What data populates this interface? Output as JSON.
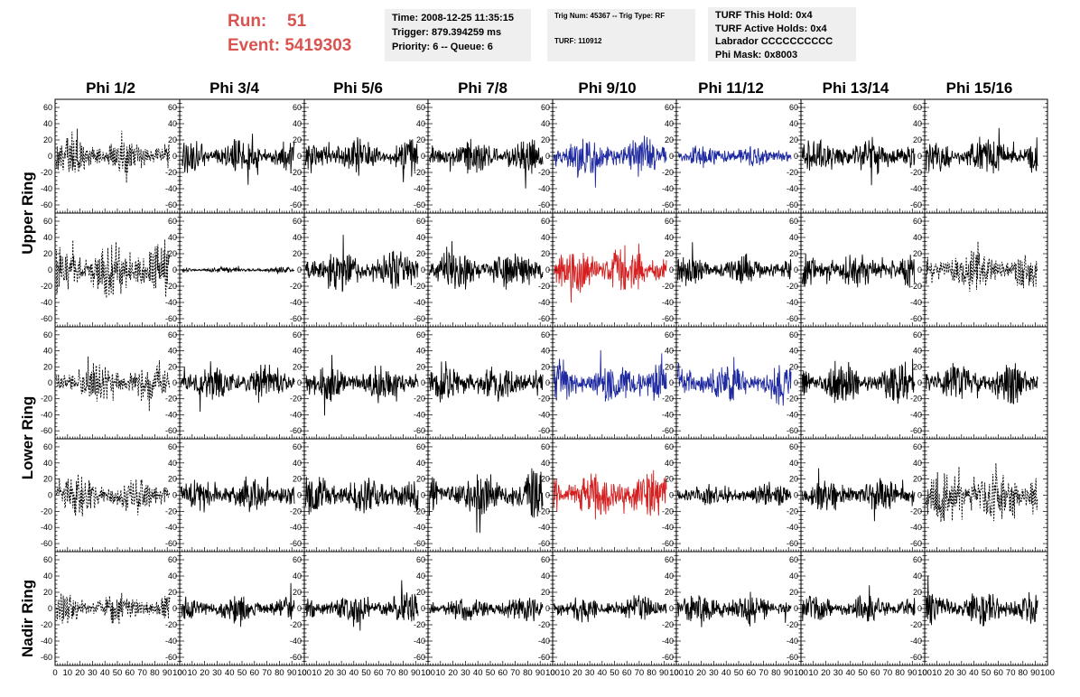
{
  "header": {
    "run_label": "Run:",
    "run_value": "51",
    "event_label": "Event:",
    "event_value": "5419303",
    "time_line": "Time: 2008-12-25 11:35:15",
    "trigger_line": "Trigger: 879.394259 ms",
    "priority_line": "Priority: 6 -- Queue: 6",
    "trig_num_line": "Trig Num: 45367 -- Trig Type: RF",
    "turf_line": "TURF: 110912",
    "turf_this_hold": "TURF This Hold: 0x4",
    "turf_active_holds": "TURF Active Holds: 0x4",
    "labrador": "Labrador CCCCCCCCCC",
    "phi_mask": "Phi Mask: 0x8003"
  },
  "colors": {
    "header_red": "#d9534f",
    "trace_black": "#000000",
    "trace_blue": "#1f2aa0",
    "trace_red": "#d42020",
    "info_bg": "#efefef"
  },
  "chart_data": {
    "type": "line",
    "columns": [
      "Phi 1/2",
      "Phi 3/4",
      "Phi 5/6",
      "Phi 7/8",
      "Phi 9/10",
      "Phi 11/12",
      "Phi 13/14",
      "Phi 15/16"
    ],
    "rows": [
      "Upper Ring",
      "Lower Ring",
      "Nadir Ring"
    ],
    "xlim": [
      0,
      100
    ],
    "x_ticks": [
      0,
      10,
      20,
      30,
      40,
      50,
      60,
      70,
      80,
      90,
      100
    ],
    "ylim": [
      -70,
      70
    ],
    "y_ticks": [
      -60,
      -40,
      -20,
      0,
      20,
      40,
      60
    ],
    "panels": [
      {
        "row": 0,
        "col": 0,
        "color": "black",
        "style": "dashed",
        "amplitude": 20
      },
      {
        "row": 0,
        "col": 1,
        "color": "black",
        "style": "solid",
        "amplitude": 18
      },
      {
        "row": 0,
        "col": 2,
        "color": "black",
        "style": "solid",
        "amplitude": 20
      },
      {
        "row": 0,
        "col": 3,
        "color": "black",
        "style": "solid",
        "amplitude": 18
      },
      {
        "row": 0,
        "col": 4,
        "color": "blue",
        "style": "solid",
        "amplitude": 22
      },
      {
        "row": 0,
        "col": 5,
        "color": "blue",
        "style": "solid",
        "amplitude": 12
      },
      {
        "row": 0,
        "col": 6,
        "color": "black",
        "style": "solid",
        "amplitude": 20
      },
      {
        "row": 0,
        "col": 7,
        "color": "black",
        "style": "solid",
        "amplitude": 20
      },
      {
        "row": 1,
        "col": 0,
        "color": "black",
        "style": "dashed",
        "amplitude": 32
      },
      {
        "row": 1,
        "col": 1,
        "color": "black",
        "style": "solid",
        "amplitude": 3
      },
      {
        "row": 1,
        "col": 2,
        "color": "black",
        "style": "solid",
        "amplitude": 22
      },
      {
        "row": 1,
        "col": 3,
        "color": "black",
        "style": "solid",
        "amplitude": 22
      },
      {
        "row": 1,
        "col": 4,
        "color": "red",
        "style": "solid",
        "amplitude": 26
      },
      {
        "row": 1,
        "col": 5,
        "color": "black",
        "style": "solid",
        "amplitude": 16
      },
      {
        "row": 1,
        "col": 6,
        "color": "black",
        "style": "solid",
        "amplitude": 18
      },
      {
        "row": 1,
        "col": 7,
        "color": "black",
        "style": "dashed",
        "amplitude": 22
      },
      {
        "row": 2,
        "col": 0,
        "color": "black",
        "style": "dashed",
        "amplitude": 22
      },
      {
        "row": 2,
        "col": 1,
        "color": "black",
        "style": "solid",
        "amplitude": 20
      },
      {
        "row": 2,
        "col": 2,
        "color": "black",
        "style": "solid",
        "amplitude": 20
      },
      {
        "row": 2,
        "col": 3,
        "color": "black",
        "style": "solid",
        "amplitude": 22
      },
      {
        "row": 2,
        "col": 4,
        "color": "blue",
        "style": "solid",
        "amplitude": 24
      },
      {
        "row": 2,
        "col": 5,
        "color": "blue",
        "style": "solid",
        "amplitude": 22
      },
      {
        "row": 2,
        "col": 6,
        "color": "black",
        "style": "solid",
        "amplitude": 22
      },
      {
        "row": 2,
        "col": 7,
        "color": "black",
        "style": "solid",
        "amplitude": 22
      },
      {
        "row": 3,
        "col": 0,
        "color": "black",
        "style": "dashed",
        "amplitude": 22
      },
      {
        "row": 3,
        "col": 1,
        "color": "black",
        "style": "solid",
        "amplitude": 18
      },
      {
        "row": 3,
        "col": 2,
        "color": "black",
        "style": "solid",
        "amplitude": 22
      },
      {
        "row": 3,
        "col": 3,
        "color": "black",
        "style": "solid",
        "amplitude": 24
      },
      {
        "row": 3,
        "col": 4,
        "color": "red",
        "style": "solid",
        "amplitude": 26
      },
      {
        "row": 3,
        "col": 5,
        "color": "black",
        "style": "solid",
        "amplitude": 14
      },
      {
        "row": 3,
        "col": 6,
        "color": "black",
        "style": "solid",
        "amplitude": 18
      },
      {
        "row": 3,
        "col": 7,
        "color": "black",
        "style": "dashed",
        "amplitude": 28
      },
      {
        "row": 4,
        "col": 0,
        "color": "black",
        "style": "dashed",
        "amplitude": 16
      },
      {
        "row": 4,
        "col": 1,
        "color": "black",
        "style": "solid",
        "amplitude": 14
      },
      {
        "row": 4,
        "col": 2,
        "color": "black",
        "style": "solid",
        "amplitude": 16
      },
      {
        "row": 4,
        "col": 3,
        "color": "black",
        "style": "solid",
        "amplitude": 14
      },
      {
        "row": 4,
        "col": 4,
        "color": "black",
        "style": "solid",
        "amplitude": 14
      },
      {
        "row": 4,
        "col": 5,
        "color": "black",
        "style": "solid",
        "amplitude": 16
      },
      {
        "row": 4,
        "col": 6,
        "color": "black",
        "style": "solid",
        "amplitude": 14
      },
      {
        "row": 4,
        "col": 7,
        "color": "black",
        "style": "solid",
        "amplitude": 18
      }
    ]
  }
}
